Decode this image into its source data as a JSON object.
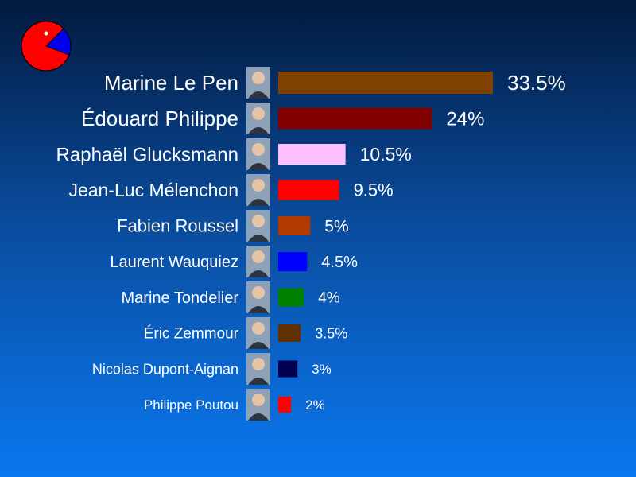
{
  "logo_icon": "pacman-pie-icon",
  "chart_data": {
    "type": "bar",
    "orientation": "horizontal",
    "categories": [
      "Marine Le Pen",
      "Édouard Philippe",
      "Raphaël Glucksmann",
      "Jean-Luc Mélenchon",
      "Fabien Roussel",
      "Laurent Wauquiez",
      "Marine Tondelier",
      "Éric Zemmour",
      "Nicolas Dupont-Aignan",
      "Philippe Poutou"
    ],
    "values": [
      33.5,
      24,
      10.5,
      9.5,
      5,
      4.5,
      4,
      3.5,
      3,
      2
    ],
    "value_labels": [
      "33.5%",
      "24%",
      "10.5%",
      "9.5%",
      "5%",
      "4.5%",
      "4%",
      "3.5%",
      "3%",
      "2%"
    ],
    "colors": [
      "#7f4000",
      "#800000",
      "#ffc0ff",
      "#ff0000",
      "#b03a00",
      "#0000ff",
      "#008000",
      "#603000",
      "#000050",
      "#ff0000"
    ],
    "photo_icons": [
      "portrait-photo-icon",
      "portrait-photo-icon",
      "portrait-photo-icon",
      "portrait-photo-icon",
      "portrait-photo-icon",
      "portrait-photo-icon",
      "portrait-photo-icon",
      "portrait-photo-icon",
      "portrait-photo-icon",
      "portrait-photo-icon"
    ],
    "xlim": [
      0,
      33.5
    ],
    "grid": false,
    "legend": "none"
  }
}
